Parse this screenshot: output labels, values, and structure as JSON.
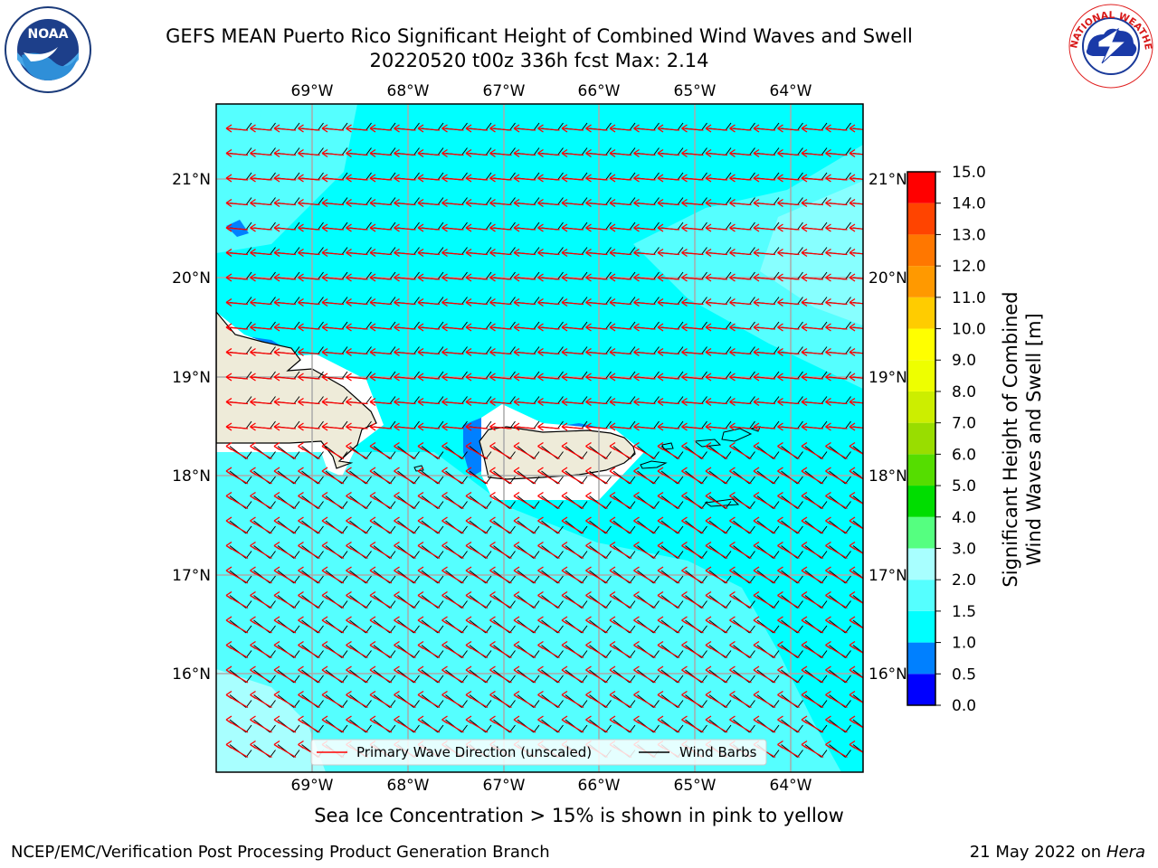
{
  "header": {
    "title_line1": "GEFS MEAN Puerto Rico Significant Height of Combined Wind Waves and Swell",
    "title_line2": "20220520 t00z 336h fcst   Max: 2.14"
  },
  "logos": {
    "left": {
      "icon": "noaa-logo-icon",
      "text": "NOAA"
    },
    "right": {
      "icon": "nws-logo-icon",
      "text": "NATIONAL WEATHER SERVICE"
    }
  },
  "map": {
    "lon_labels": [
      "69°W",
      "68°W",
      "67°W",
      "66°W",
      "65°W",
      "64°W"
    ],
    "lat_labels": [
      "21°N",
      "20°N",
      "19°N",
      "18°N",
      "17°N",
      "16°N"
    ],
    "legend": {
      "wave_label": "Primary Wave Direction (unscaled)",
      "wind_label": "Wind Barbs"
    },
    "colors": {
      "sea_main": "#00ffff",
      "sea_light": "#55ffff",
      "sea_lighter": "#a8ffff",
      "low_wave": "#0080ff",
      "land": "#eeebd9",
      "arrow": "#ff0000"
    }
  },
  "colorbar": {
    "label_line1": "Significant Height of Combined",
    "label_line2": "Wind Waves and Swell [m]",
    "ticks": [
      "0.0",
      "0.5",
      "1.0",
      "1.5",
      "2.0",
      "3.0",
      "4.0",
      "5.0",
      "6.0",
      "7.0",
      "8.0",
      "9.0",
      "10.0",
      "11.0",
      "12.0",
      "13.0",
      "14.0",
      "15.0"
    ],
    "colors": [
      "#0000ff",
      "#0080ff",
      "#00ffff",
      "#55ffff",
      "#a8ffff",
      "#55ff80",
      "#00dd00",
      "#55dd00",
      "#99dd00",
      "#ccee00",
      "#eeff00",
      "#ffff00",
      "#ffcc00",
      "#ff9900",
      "#ff7700",
      "#ff4400",
      "#ff0000"
    ]
  },
  "note": "Sea Ice Concentration > 15% is shown in pink to yellow",
  "footer": {
    "left": "NCEP/EMC/Verification Post Processing Product Generation Branch",
    "right_prefix": "21 May 2022 on",
    "right_host": "Hera"
  }
}
